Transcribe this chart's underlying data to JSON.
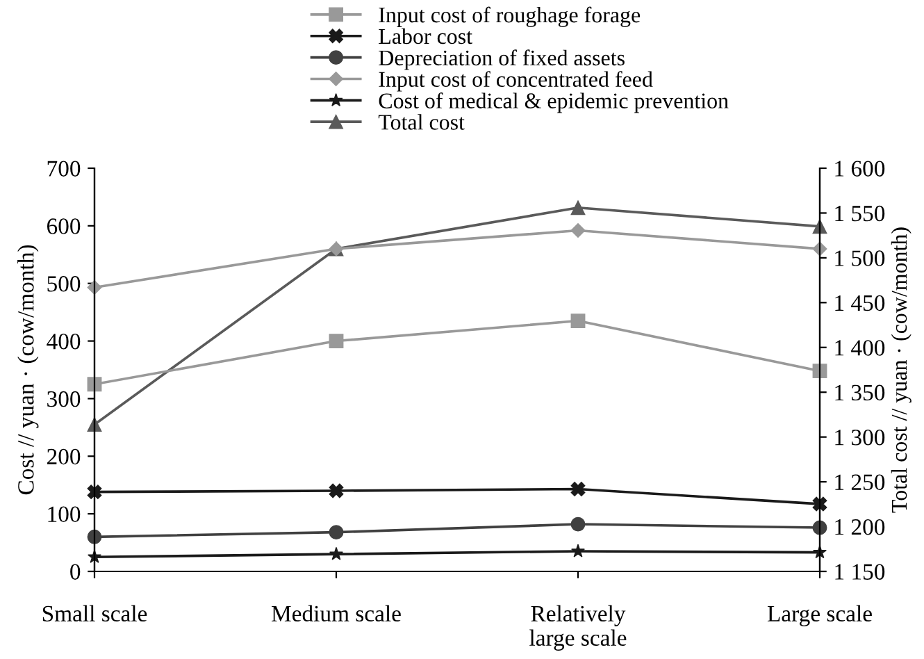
{
  "chart_data": {
    "type": "line",
    "ylabel": "Cost // yuan · (cow/month)",
    "y2label": "Total cost // yuan · (cow/month)",
    "categories": [
      "Small scale",
      "Medium scale",
      "Relatively\nlarge scale",
      "Large scale"
    ],
    "series": [
      {
        "name": "Input cost of roughage forage",
        "color": "#999999",
        "marker": "square",
        "values": [
          325,
          400,
          435,
          348
        ]
      },
      {
        "name": "Labor cost",
        "color": "#1a1a1a",
        "marker": "cross",
        "values": [
          138,
          140,
          143,
          117
        ]
      },
      {
        "name": "Depreciation of fixed assets",
        "color": "#404040",
        "marker": "circle",
        "values": [
          60,
          68,
          82,
          76
        ]
      },
      {
        "name": "Input cost of concentrated feed",
        "color": "#999999",
        "marker": "diamond",
        "values": [
          493,
          560,
          592,
          560
        ]
      },
      {
        "name": "Cost of medical & epidemic prevention",
        "color": "#1a1a1a",
        "marker": "star",
        "values": [
          25,
          30,
          35,
          33
        ]
      },
      {
        "name": "Total cost",
        "color": "#5a5a5a",
        "marker": "triangle",
        "axis": "y2",
        "values": [
          1314,
          1510,
          1556,
          1535
        ]
      }
    ],
    "ylim": [
      0,
      700
    ],
    "yticks": [
      0,
      100,
      200,
      300,
      400,
      500,
      600,
      700
    ],
    "y2lim": [
      1150,
      1600
    ],
    "y2ticks": [
      {
        "value": 1150,
        "label": "1 150"
      },
      {
        "value": 1200,
        "label": "1 200"
      },
      {
        "value": 1250,
        "label": "1 250"
      },
      {
        "value": 1300,
        "label": "1 300"
      },
      {
        "value": 1350,
        "label": "1 350"
      },
      {
        "value": 1400,
        "label": "1 400"
      },
      {
        "value": 1450,
        "label": "1 450"
      },
      {
        "value": 1500,
        "label": "1 500"
      },
      {
        "value": 1550,
        "label": "1 550"
      },
      {
        "value": 1600,
        "label": "1 600"
      }
    ],
    "legend": "top",
    "grid": false
  }
}
